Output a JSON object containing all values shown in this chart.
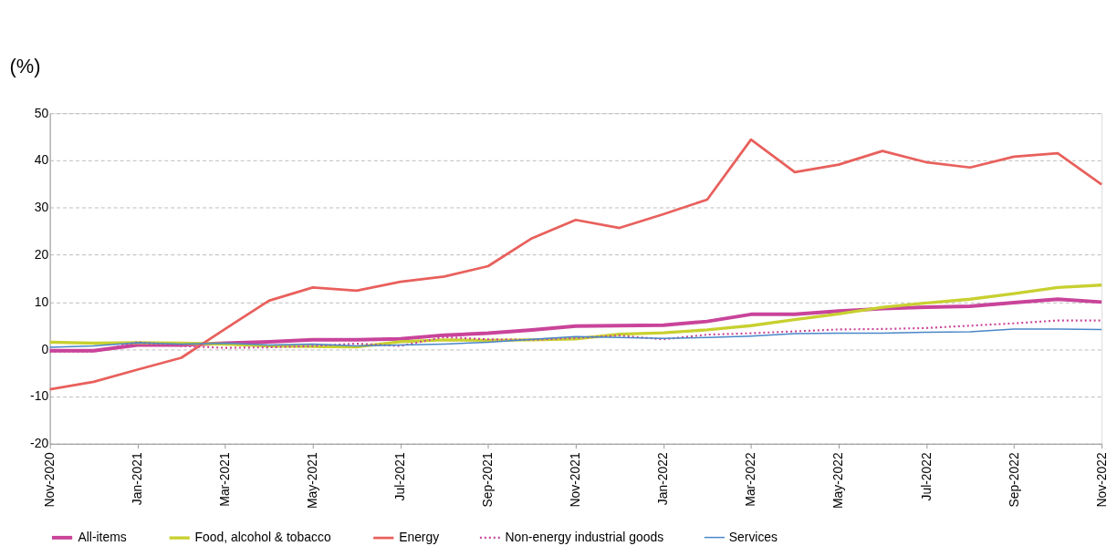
{
  "chart_data": {
    "type": "line",
    "ylabel": "(%)",
    "categories": [
      "Nov-2020",
      null,
      "Jan-2021",
      null,
      "Mar-2021",
      null,
      "May-2021",
      null,
      "Jul-2021",
      null,
      "Sep-2021",
      null,
      "Nov-2021",
      null,
      "Jan-2022",
      null,
      "Mar-2022",
      null,
      "May-2022",
      null,
      "Jul-2022",
      null,
      "Sep-2022",
      null,
      "Nov-2022"
    ],
    "ylim": [
      -20,
      50
    ],
    "yticks": [
      -20,
      -10,
      0,
      10,
      20,
      30,
      40,
      50
    ],
    "grid": "y",
    "legend": "bottom",
    "marker": "none",
    "series": [
      {
        "name": "All-items",
        "color": "#c9449a",
        "line_style": "solid",
        "values": [
          -0.3,
          -0.3,
          0.9,
          0.9,
          1.3,
          1.6,
          2.0,
          2.0,
          2.2,
          3.0,
          3.4,
          4.1,
          4.9,
          5.0,
          5.1,
          5.9,
          7.4,
          7.4,
          8.1,
          8.6,
          8.9,
          9.1,
          9.9,
          10.6,
          10.0
        ]
      },
      {
        "name": "Food, alcohol & tobacco",
        "color": "#c8d030",
        "line_style": "solid",
        "values": [
          1.5,
          1.3,
          1.4,
          1.3,
          1.1,
          0.7,
          0.6,
          0.5,
          1.6,
          2.0,
          1.9,
          2.0,
          2.2,
          3.2,
          3.5,
          4.1,
          5.0,
          6.3,
          7.5,
          8.9,
          9.8,
          10.6,
          11.8,
          13.1,
          13.6
        ]
      },
      {
        "name": "Energy",
        "color": "#e8605c",
        "line_style": "solid",
        "values": [
          -8.5,
          -6.9,
          -4.3,
          -1.8,
          4.3,
          10.3,
          13.1,
          12.4,
          14.3,
          15.4,
          17.6,
          23.5,
          27.4,
          25.7,
          28.6,
          31.7,
          44.4,
          37.5,
          39.1,
          42.0,
          39.6,
          38.5,
          40.8,
          41.5,
          34.9
        ]
      },
      {
        "name": "Non-energy industrial goods",
        "color": "#c9449a",
        "line_style": "dotted",
        "values": [
          -0.5,
          -0.5,
          1.5,
          0.7,
          0.3,
          0.4,
          0.7,
          1.2,
          0.7,
          2.6,
          2.1,
          2.0,
          2.4,
          2.9,
          2.1,
          3.1,
          3.4,
          3.8,
          4.2,
          4.3,
          4.5,
          5.0,
          5.5,
          6.1,
          6.1
        ]
      },
      {
        "name": "Services",
        "color": "#4a86c8",
        "line_style": "solid",
        "values": [
          0.4,
          0.7,
          1.4,
          1.1,
          1.3,
          0.9,
          1.1,
          0.7,
          0.9,
          1.1,
          1.5,
          2.1,
          2.7,
          2.5,
          2.3,
          2.5,
          2.8,
          3.3,
          3.4,
          3.4,
          3.6,
          3.7,
          4.3,
          4.3,
          4.2
        ]
      }
    ]
  }
}
